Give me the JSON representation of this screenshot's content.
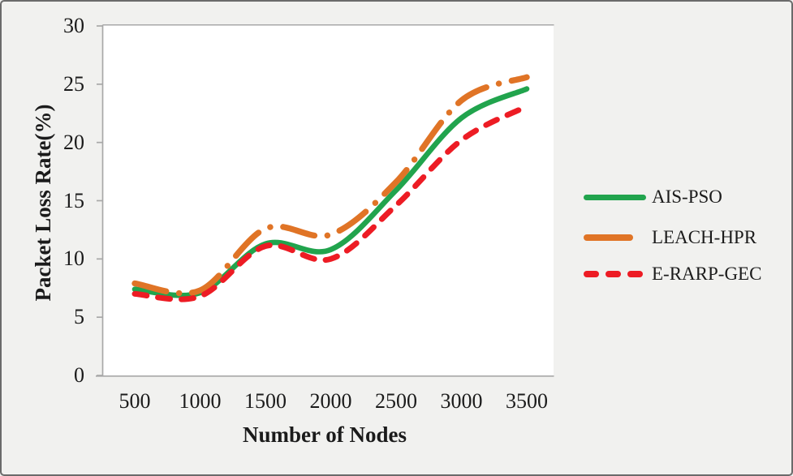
{
  "chart_data": {
    "type": "line",
    "title": "",
    "xlabel": "Number of Nodes",
    "ylabel": "Packet Loss Rate(%)",
    "x": [
      500,
      1000,
      1500,
      2000,
      2500,
      3000,
      3500
    ],
    "y_ticks": [
      0,
      5,
      10,
      15,
      20,
      25,
      30
    ],
    "ylim": [
      0,
      30
    ],
    "grid": false,
    "legend_position": "right-middle",
    "series": [
      {
        "name": "AIS-PSO",
        "style": "solid",
        "color": "#21a44d",
        "values": [
          7.4,
          7.1,
          11.3,
          10.8,
          15.9,
          22.1,
          24.6
        ]
      },
      {
        "name": "LEACH-HPR",
        "style": "dash-dot",
        "color": "#e07426",
        "values": [
          7.9,
          7.3,
          12.6,
          12.1,
          16.6,
          23.6,
          25.6
        ]
      },
      {
        "name": "E-RARP-GEC",
        "style": "dashed",
        "color": "#ed1c24",
        "values": [
          7.0,
          6.8,
          11.1,
          10.0,
          14.6,
          20.2,
          23.1
        ]
      }
    ]
  },
  "colors": {
    "background": "#f1f1ef",
    "plot_background": "#ffffff",
    "axis": "#a8a8a8",
    "text": "#1b1b1b",
    "frame_border": "#6b6b6b"
  }
}
